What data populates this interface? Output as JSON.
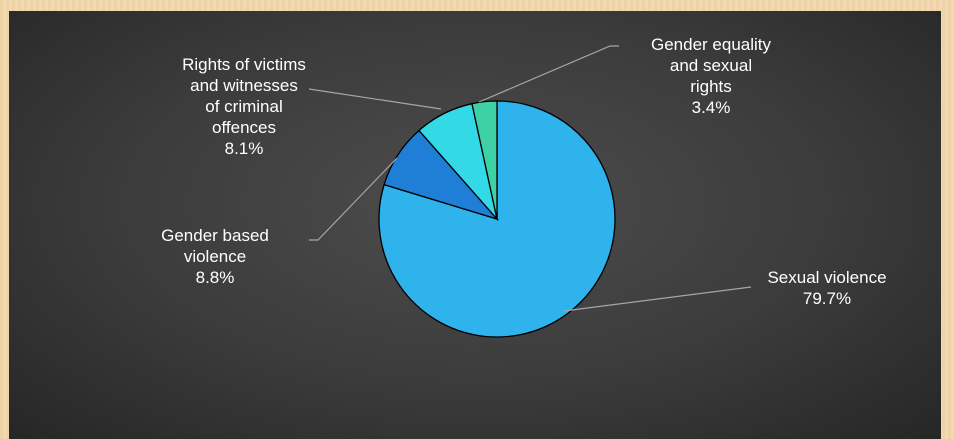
{
  "chart_data": {
    "type": "pie",
    "title": "",
    "legend": "none",
    "slices": [
      {
        "label": "Sexual violence",
        "value": 79.7,
        "percent_label": "79.7%",
        "color": "#2eb3ec",
        "label_lines": [
          "Sexual violence",
          "79.7%"
        ]
      },
      {
        "label": "Gender based violence",
        "value": 8.8,
        "percent_label": "8.8%",
        "color": "#1f7fd6",
        "label_lines": [
          "Gender based",
          "violence",
          "8.8%"
        ]
      },
      {
        "label": "Rights of victims and witnesses of criminal offences",
        "value": 8.1,
        "percent_label": "8.1%",
        "color": "#33d9e6",
        "label_lines": [
          "Rights of victims",
          "and witnesses",
          "of criminal",
          "offences",
          "8.1%"
        ]
      },
      {
        "label": "Gender equality and sexual rights",
        "value": 3.4,
        "percent_label": "3.4%",
        "color": "#3fd1a6",
        "label_lines": [
          "Gender equality",
          "and sexual",
          "rights",
          "3.4%"
        ]
      }
    ]
  },
  "colors": {
    "page_background": "#f3d9b0",
    "panel_background": "#3b3b3b",
    "label_text": "#ffffff",
    "leader_line": "#a6a6a6"
  }
}
